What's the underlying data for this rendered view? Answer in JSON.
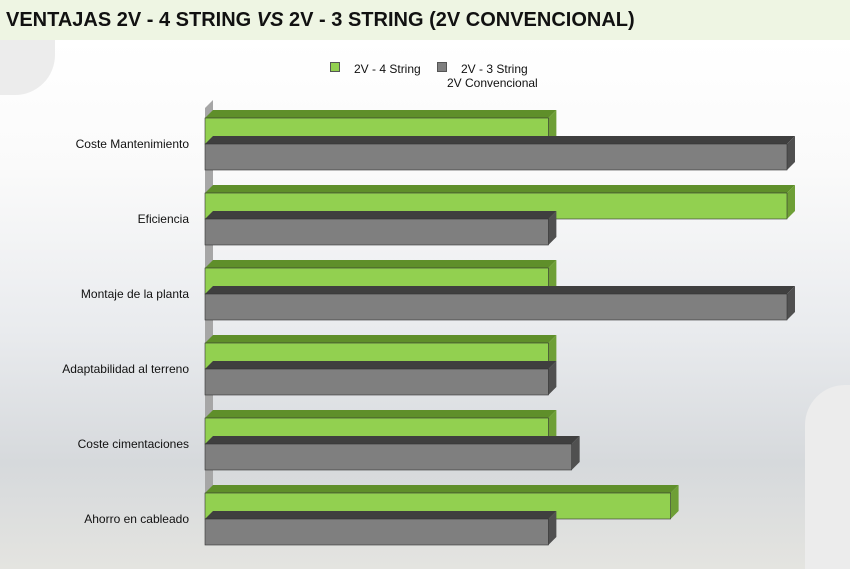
{
  "title_parts": {
    "a": "VENTAJAS 2V - 4 STRING ",
    "b": "VS",
    "c": " 2V - 3 STRING (2V CONVENCIONAL)"
  },
  "chart_data": {
    "type": "bar",
    "orientation": "horizontal",
    "style": "3d",
    "categories": [
      "Coste Mantenimiento",
      "Eficiencia",
      "Montaje de la planta",
      "Adaptabilidad al terreno",
      "Coste cimentaciones",
      "Ahorro en cableado"
    ],
    "series": [
      {
        "name": "2V - 4 String",
        "color": "#92d050",
        "values": [
          5.9,
          10,
          5.9,
          5.9,
          5.9,
          8.0
        ]
      },
      {
        "name": "2V - 3 String 2V Convencional",
        "name_lines": [
          "2V - 3 String",
          "2V Convencional"
        ],
        "color": "#7f7f7f",
        "values": [
          10,
          5.9,
          10,
          5.9,
          6.3,
          5.9
        ]
      }
    ],
    "xlim": [
      0,
      10
    ],
    "axis_labels_visible": false,
    "grid": false,
    "legend": "top"
  }
}
